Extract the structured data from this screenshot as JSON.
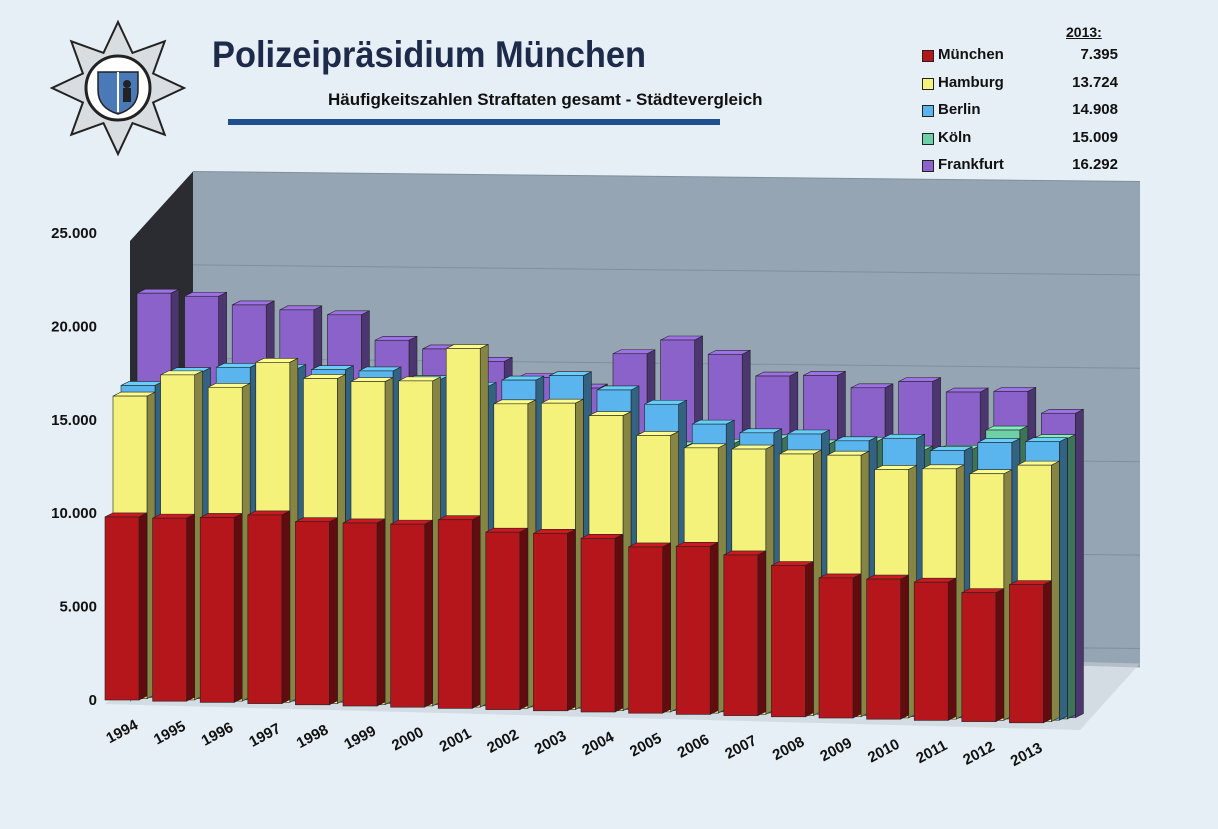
{
  "header": {
    "title": "Polizeipräsidium München",
    "subtitle": "Häufigkeitszahlen Straftaten gesamt - Städtevergleich"
  },
  "legend": {
    "year_label": "2013:",
    "entries": [
      {
        "name": "München",
        "value": "7.395",
        "color": "#b4161c"
      },
      {
        "name": "Hamburg",
        "value": "13.724",
        "color": "#f4f27a"
      },
      {
        "name": "Berlin",
        "value": "14.908",
        "color": "#5ab4ee"
      },
      {
        "name": "Köln",
        "value": "15.009",
        "color": "#6fcfa6"
      },
      {
        "name": "Frankfurt",
        "value": "16.292",
        "color": "#8a62c9"
      }
    ]
  },
  "chart_data": {
    "type": "bar",
    "subtype": "3d-grouped-depth",
    "title": "Häufigkeitszahlen Straftaten gesamt - Städtevergleich",
    "categories": [
      "1994",
      "1995",
      "1996",
      "1997",
      "1998",
      "1999",
      "2000",
      "2001",
      "2002",
      "2003",
      "2004",
      "2005",
      "2006",
      "2007",
      "2008",
      "2009",
      "2010",
      "2011",
      "2012",
      "2013"
    ],
    "ylim": [
      0,
      25000
    ],
    "yticks": [
      "0",
      "5.000",
      "10.000",
      "15.000",
      "20.000",
      "25.000"
    ],
    "series": [
      {
        "name": "München",
        "color": "#b4161c",
        "values": [
          9800,
          9800,
          9900,
          10100,
          9800,
          9800,
          9800,
          10100,
          9500,
          9500,
          9300,
          8900,
          9000,
          8600,
          8100,
          7500,
          7500,
          7400,
          6900,
          7395
        ]
      },
      {
        "name": "Hamburg",
        "color": "#f4f27a",
        "values": [
          16200,
          17400,
          16800,
          18200,
          17400,
          17300,
          17400,
          19200,
          16300,
          16400,
          15800,
          14800,
          14200,
          14200,
          14000,
          14000,
          13300,
          13400,
          13200,
          13724
        ]
      },
      {
        "name": "Berlin",
        "color": "#5ab4ee",
        "values": [
          16700,
          17500,
          17800,
          17800,
          17800,
          17800,
          17400,
          17100,
          17500,
          17800,
          17100,
          16400,
          15400,
          15000,
          15000,
          14700,
          14900,
          14300,
          14800,
          14908
        ]
      },
      {
        "name": "Köln",
        "color": "#6fcfa6",
        "values": [
          15600,
          15800,
          15600,
          15600,
          15700,
          15600,
          15400,
          15300,
          15200,
          15000,
          14500,
          14100,
          14300,
          14600,
          14400,
          14600,
          14200,
          14300,
          15400,
          15009
        ]
      },
      {
        "name": "Frankfurt",
        "color": "#8a62c9",
        "values": [
          21500,
          21400,
          21000,
          20800,
          20600,
          19300,
          18900,
          18300,
          17500,
          17000,
          18900,
          19700,
          19000,
          17900,
          18000,
          17400,
          17800,
          17300,
          17400,
          16292
        ]
      }
    ],
    "legend_position": "top-right"
  }
}
